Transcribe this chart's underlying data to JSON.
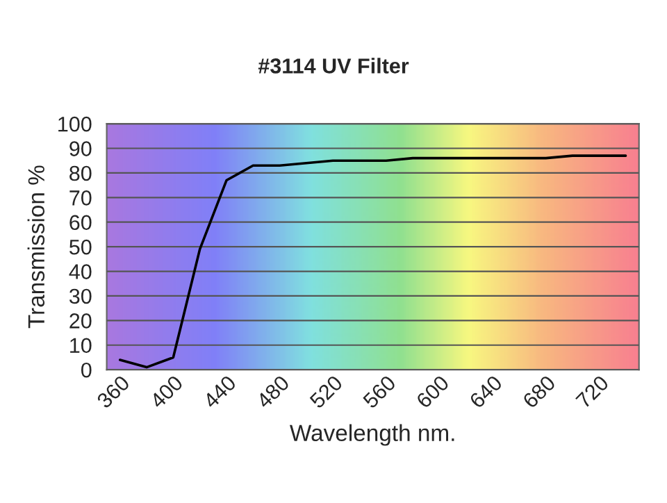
{
  "chart_data": {
    "type": "line",
    "title": "#3114 UV Filter",
    "xlabel": "Wavelength nm.",
    "ylabel": "Transmission %",
    "categories": [
      "360",
      null,
      "400",
      null,
      "440",
      null,
      "480",
      null,
      "520",
      null,
      "560",
      null,
      "600",
      null,
      "640",
      null,
      "680",
      null,
      "720",
      null
    ],
    "series": [
      {
        "color": "#000000",
        "values": [
          4,
          1,
          5,
          49,
          77,
          83,
          83,
          84,
          85,
          85,
          85,
          86,
          86,
          86,
          86,
          86,
          86,
          87,
          87,
          87
        ]
      }
    ],
    "ylim": [
      0,
      100
    ],
    "yticks": [
      0,
      10,
      20,
      30,
      40,
      50,
      60,
      70,
      80,
      90,
      100
    ],
    "grid": "y",
    "marker": "none",
    "line_style": "solid"
  }
}
